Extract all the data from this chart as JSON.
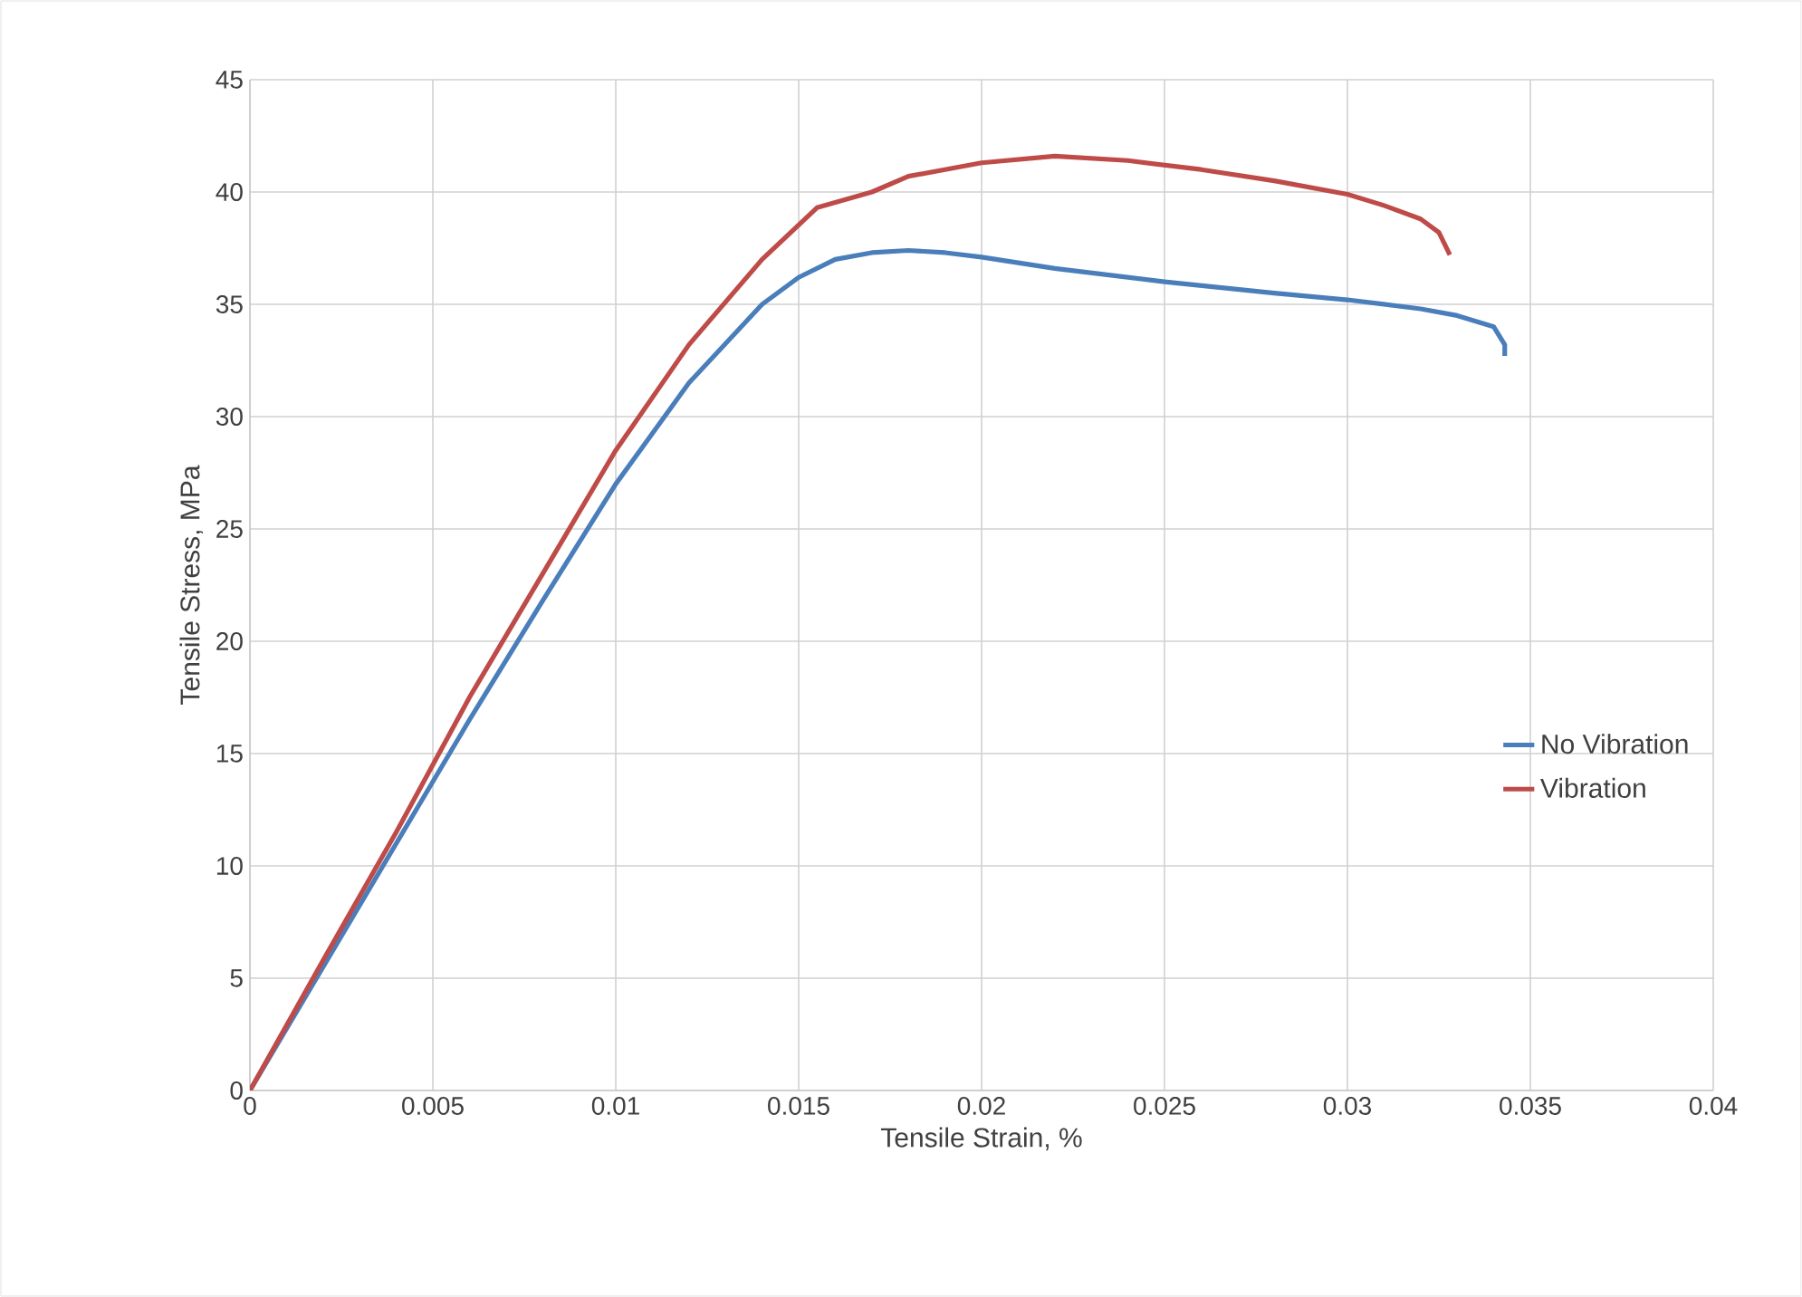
{
  "chart_data": {
    "type": "line",
    "xlabel": "Tensile Strain, %",
    "ylabel": "Tensile Stress, MPa",
    "xlim": [
      0,
      0.04
    ],
    "xticks": [
      0,
      0.005,
      0.01,
      0.015,
      0.02,
      0.025,
      0.03,
      0.035,
      0.04
    ],
    "ylim": [
      0,
      45
    ],
    "yticks": [
      0,
      5,
      10,
      15,
      20,
      25,
      30,
      35,
      40,
      45
    ],
    "grid": true,
    "legend": "right",
    "marker": "none",
    "line_style": "solid",
    "series": [
      {
        "name": "No Vibration",
        "color": "#4a7ebb",
        "x": [
          0,
          0.002,
          0.004,
          0.006,
          0.008,
          0.01,
          0.012,
          0.014,
          0.015,
          0.016,
          0.017,
          0.018,
          0.019,
          0.02,
          0.022,
          0.025,
          0.028,
          0.03,
          0.032,
          0.033,
          0.034,
          0.0343,
          0.0343
        ],
        "values": [
          0,
          5.5,
          11,
          16.5,
          21.8,
          27,
          31.5,
          35,
          36.2,
          37,
          37.3,
          37.4,
          37.3,
          37.1,
          36.6,
          36,
          35.5,
          35.2,
          34.8,
          34.5,
          34,
          33.2,
          32.7
        ]
      },
      {
        "name": "Vibration",
        "color": "#be4b48",
        "x": [
          0,
          0.002,
          0.004,
          0.006,
          0.008,
          0.01,
          0.012,
          0.014,
          0.0155,
          0.017,
          0.018,
          0.02,
          0.022,
          0.024,
          0.026,
          0.028,
          0.03,
          0.031,
          0.032,
          0.0325,
          0.0328
        ],
        "values": [
          0,
          5.8,
          11.5,
          17.5,
          23,
          28.5,
          33.2,
          37,
          39.3,
          40,
          40.7,
          41.3,
          41.6,
          41.4,
          41,
          40.5,
          39.9,
          39.4,
          38.8,
          38.2,
          37.2
        ]
      }
    ]
  }
}
